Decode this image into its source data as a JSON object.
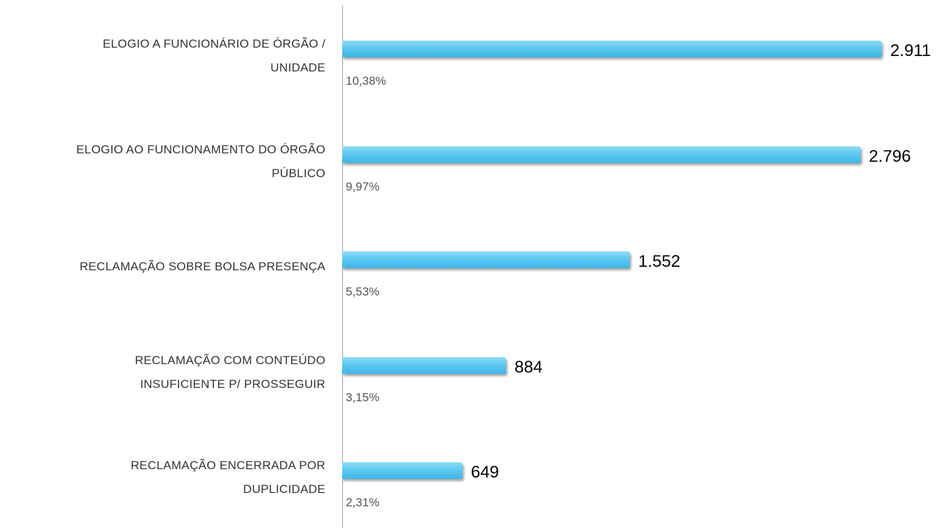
{
  "chart_data": {
    "type": "bar",
    "orientation": "horizontal",
    "categories": [
      [
        "ELOGIO A FUNCIONÁRIO DE ÓRGÃO /",
        "UNIDADE"
      ],
      [
        "ELOGIO AO FUNCIONAMENTO DO ÓRGÃO",
        "PÚBLICO"
      ],
      [
        "RECLAMAÇÃO SOBRE BOLSA PRESENÇA"
      ],
      [
        "RECLAMAÇÃO COM CONTEÚDO",
        "INSUFICIENTE P/ PROSSEGUIR"
      ],
      [
        "RECLAMAÇÃO ENCERRADA POR",
        "DUPLICIDADE"
      ]
    ],
    "values": [
      2911,
      2796,
      1552,
      884,
      649
    ],
    "value_labels": [
      "2.911",
      "2.796",
      "1.552",
      "884",
      "649"
    ],
    "shares": [
      10.38,
      9.97,
      5.53,
      3.15,
      2.31
    ],
    "share_labels": [
      "10,38%",
      "9,97%",
      "5,53%",
      "3,15%",
      "2,31%"
    ],
    "color": "#5cc8f0"
  }
}
